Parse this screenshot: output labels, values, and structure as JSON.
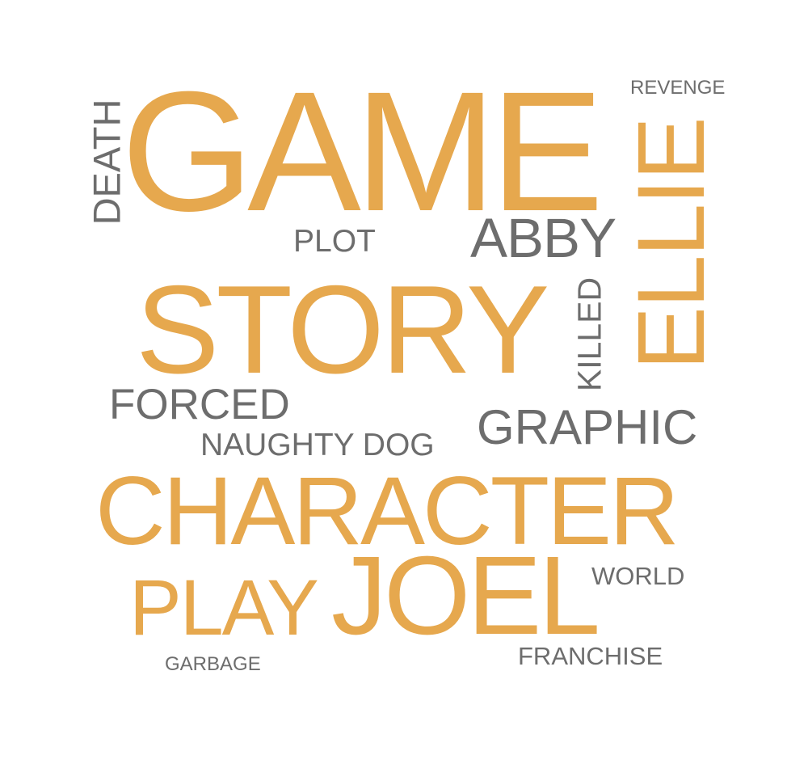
{
  "palette": {
    "accent": "#E6A84E",
    "neutral": "#6D6D6D",
    "background": "#FFFFFF"
  },
  "words": [
    {
      "key": "game",
      "text": "GAME",
      "color": "accent",
      "rotation": "horizontal"
    },
    {
      "key": "story",
      "text": "STORY",
      "color": "accent",
      "rotation": "horizontal"
    },
    {
      "key": "character",
      "text": "CHARACTER",
      "color": "accent",
      "rotation": "horizontal"
    },
    {
      "key": "joel",
      "text": "JOEL",
      "color": "accent",
      "rotation": "horizontal"
    },
    {
      "key": "ellie",
      "text": "ELLIE",
      "color": "accent",
      "rotation": "vertical"
    },
    {
      "key": "play",
      "text": "PLAY",
      "color": "accent",
      "rotation": "horizontal"
    },
    {
      "key": "abby",
      "text": "ABBY",
      "color": "neutral",
      "rotation": "horizontal"
    },
    {
      "key": "graphic",
      "text": "GRAPHIC",
      "color": "neutral",
      "rotation": "horizontal"
    },
    {
      "key": "forced",
      "text": "FORCED",
      "color": "neutral",
      "rotation": "horizontal"
    },
    {
      "key": "death",
      "text": "DEATH",
      "color": "neutral",
      "rotation": "vertical"
    },
    {
      "key": "killed",
      "text": "KILLED",
      "color": "neutral",
      "rotation": "vertical"
    },
    {
      "key": "naughty_dog",
      "text": "NAUGHTY DOG",
      "color": "neutral",
      "rotation": "horizontal"
    },
    {
      "key": "plot",
      "text": "PLOT",
      "color": "neutral",
      "rotation": "horizontal"
    },
    {
      "key": "world",
      "text": "WORLD",
      "color": "neutral",
      "rotation": "horizontal"
    },
    {
      "key": "franchise",
      "text": "FRANCHISE",
      "color": "neutral",
      "rotation": "horizontal"
    },
    {
      "key": "revenge",
      "text": "REVENGE",
      "color": "neutral",
      "rotation": "horizontal"
    },
    {
      "key": "garbage",
      "text": "GARBAGE",
      "color": "neutral",
      "rotation": "horizontal"
    }
  ]
}
